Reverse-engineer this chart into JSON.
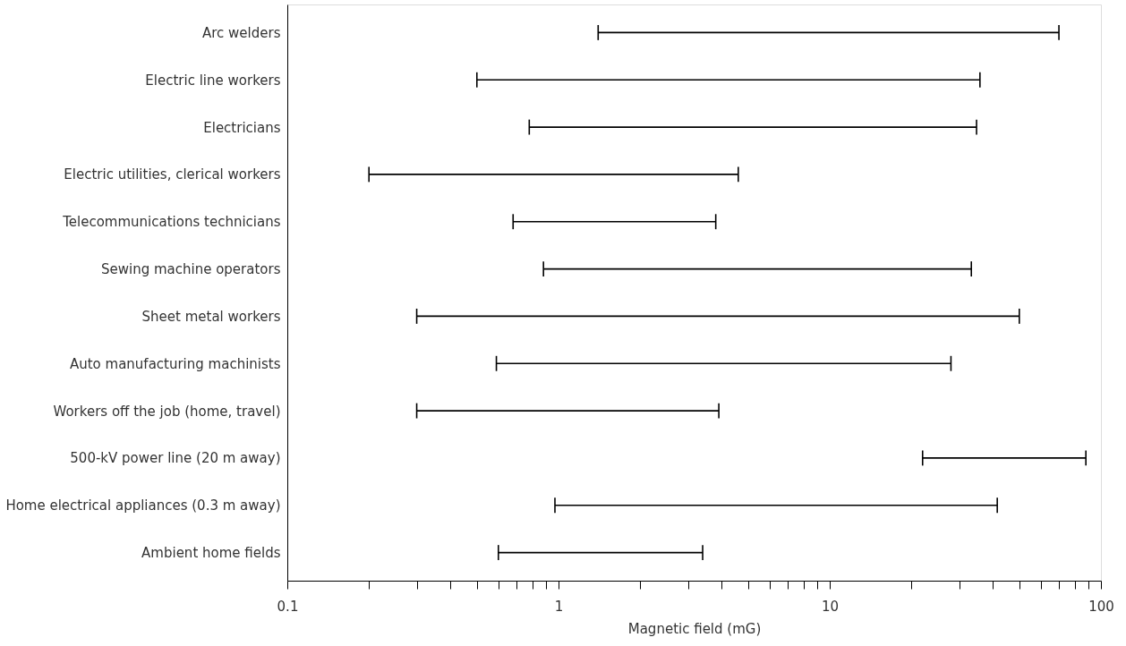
{
  "chart_data": {
    "type": "bar",
    "orientation": "horizontal",
    "log": "x",
    "grid": false,
    "xlabel": "Magnetic field (mG)",
    "categories": [
      "Arc welders",
      "Electric line workers",
      "Electricians",
      "Electric utilities, clerical workers",
      "Telecommunications technicians",
      "Sewing machine operators",
      "Sheet metal workers",
      "Auto manufacturing machinists",
      "Workers off the job (home, travel)",
      "500-kV power line (20 m away)",
      "Home electrical appliances (0.3 m away)",
      "Ambient home fields"
    ],
    "base": [
      1.4,
      0.5,
      0.78,
      0.2,
      0.68,
      0.88,
      0.3,
      0.59,
      0.3,
      22,
      0.97,
      0.6
    ],
    "values": [
      68.6,
      35.3,
      34,
      4.4,
      3.12,
      32.4,
      49.7,
      27.4,
      3.6,
      66,
      40.5,
      2.8
    ],
    "color": "#000000",
    "xlim": [
      0.1,
      100
    ],
    "xticks": [
      0.1,
      {
        "value": 0.2,
        "label": null
      },
      {
        "value": 0.3,
        "label": null
      },
      {
        "value": 0.4,
        "label": null
      },
      {
        "value": 0.5,
        "label": null
      },
      {
        "value": 0.6,
        "label": null
      },
      {
        "value": 0.7,
        "label": null
      },
      {
        "value": 0.8,
        "label": null
      },
      {
        "value": 0.9,
        "label": null
      },
      1,
      {
        "value": 2,
        "label": null
      },
      {
        "value": 3,
        "label": null
      },
      {
        "value": 4,
        "label": null
      },
      {
        "value": 5,
        "label": null
      },
      {
        "value": 6,
        "label": null
      },
      {
        "value": 7,
        "label": null
      },
      {
        "value": 8,
        "label": null
      },
      {
        "value": 9,
        "label": null
      },
      10,
      {
        "value": 20,
        "label": null
      },
      {
        "value": 30,
        "label": null
      },
      {
        "value": 40,
        "label": null
      },
      {
        "value": 50,
        "label": null
      },
      {
        "value": 60,
        "label": null
      },
      {
        "value": 70,
        "label": null
      },
      {
        "value": 80,
        "label": null
      },
      {
        "value": 90,
        "label": null
      },
      100
    ]
  }
}
